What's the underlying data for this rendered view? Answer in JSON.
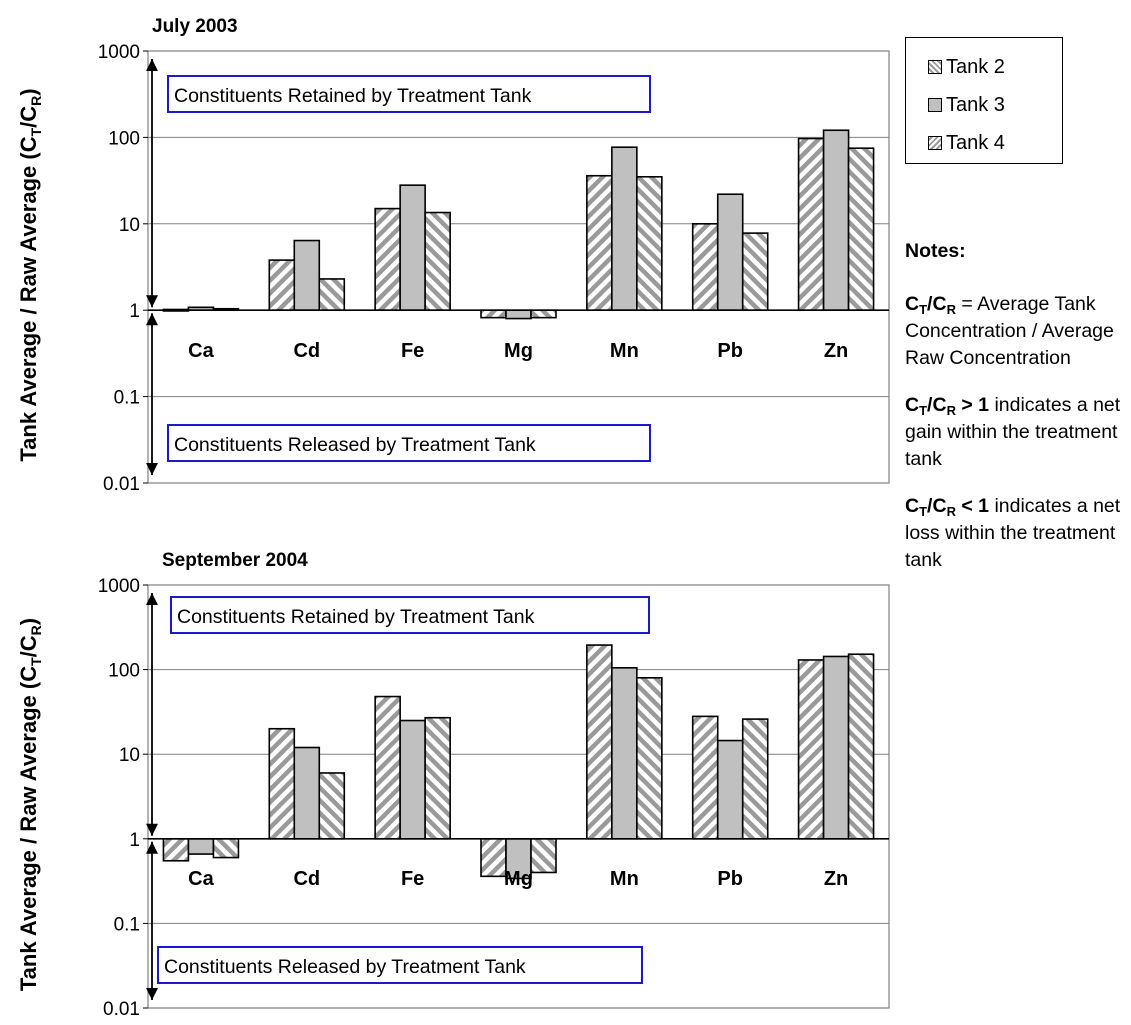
{
  "chart_data": [
    {
      "type": "bar",
      "title": "July 2003",
      "ylabel": "Tank Average / Raw Average (C_T/C_R)",
      "yscale": "log",
      "ylim": [
        0.01,
        1000
      ],
      "baseline": 1,
      "yticks": [
        "0.01",
        "0.1",
        "1",
        "10",
        "100",
        "1000"
      ],
      "categories": [
        "Ca",
        "Cd",
        "Fe",
        "Mg",
        "Mn",
        "Pb",
        "Zn"
      ],
      "series": [
        {
          "name": "Tank 2",
          "values": [
            1.02,
            3.8,
            15,
            0.82,
            36,
            10,
            97
          ]
        },
        {
          "name": "Tank 3",
          "values": [
            1.08,
            6.4,
            28,
            0.8,
            77,
            22,
            121
          ]
        },
        {
          "name": "Tank 4",
          "values": [
            1.04,
            2.3,
            13.5,
            0.82,
            35,
            7.8,
            75
          ]
        }
      ],
      "annotations": [
        "Constituents Retained by Treatment Tank",
        "Constituents Released by Treatment Tank"
      ]
    },
    {
      "type": "bar",
      "title": "September 2004",
      "ylabel": "Tank Average / Raw Average (C_T/C_R)",
      "yscale": "log",
      "ylim": [
        0.01,
        1000
      ],
      "baseline": 1,
      "yticks": [
        "0.01",
        "0.1",
        "1",
        "10",
        "100",
        "1000"
      ],
      "categories": [
        "Ca",
        "Cd",
        "Fe",
        "Mg",
        "Mn",
        "Pb",
        "Zn"
      ],
      "series": [
        {
          "name": "Tank 2",
          "values": [
            0.55,
            20,
            48,
            0.36,
            195,
            28,
            130
          ]
        },
        {
          "name": "Tank 3",
          "values": [
            0.66,
            12,
            25,
            0.34,
            105,
            14.5,
            143
          ]
        },
        {
          "name": "Tank 4",
          "values": [
            0.6,
            6,
            27,
            0.4,
            80,
            26,
            152
          ]
        }
      ],
      "annotations": [
        "Constituents Retained by Treatment Tank",
        "Constituents Released by Treatment Tank"
      ]
    }
  ],
  "legend": {
    "placement": "right",
    "items": [
      "Tank 2",
      "Tank 3",
      "Tank 4"
    ]
  },
  "notes": {
    "heading": "Notes:",
    "n1": {
      "symbol": "C_T/C_R",
      "text": " = Average Tank Concentration / Average Raw Concentration"
    },
    "n2": {
      "symbol": "C_T/C_R > 1",
      "text": " indicates a net gain within the treatment tank"
    },
    "n3": {
      "symbol": "C_T/C_R < 1",
      "text": " indicates a net loss within the treatment tank"
    }
  },
  "colors": {
    "bar_fill": "#c0c0c0",
    "hatch": "#909090",
    "box_border": "#1a1acc",
    "grid": "#808080"
  }
}
